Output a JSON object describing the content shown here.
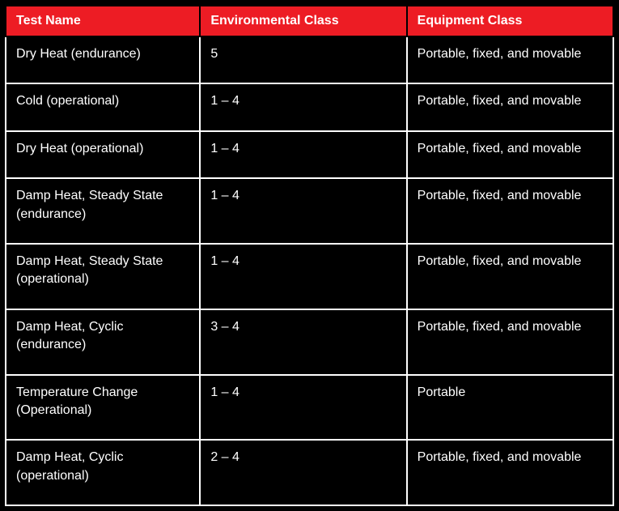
{
  "table": {
    "background_color": "#000000",
    "header_background": "#ed1c24",
    "header_text_color": "#ffffff",
    "cell_text_color": "#ffffff",
    "cell_border_color": "#ffffff",
    "header_border_color": "#000000",
    "font_size": 16,
    "columns": [
      "Test Name",
      "Environmental Class",
      "Equipment Class"
    ],
    "rows": [
      {
        "test_name": "Dry Heat (endurance)",
        "env_class": "5",
        "equip_class": "Portable, fixed, and movable"
      },
      {
        "test_name": "Cold (operational)",
        "env_class": "1 – 4",
        "equip_class": "Portable, fixed, and movable"
      },
      {
        "test_name": "Dry Heat (operational)",
        "env_class": "1 – 4",
        "equip_class": "Portable, fixed, and movable"
      },
      {
        "test_name": "Damp Heat, Steady State (endurance)",
        "env_class": "1 – 4",
        "equip_class": "Portable, fixed, and movable"
      },
      {
        "test_name": "Damp Heat, Steady State (operational)",
        "env_class": "1 – 4",
        "equip_class": "Portable, fixed, and movable"
      },
      {
        "test_name": "Damp Heat, Cyclic (endurance)",
        "env_class": "3 – 4",
        "equip_class": "Portable, fixed, and movable"
      },
      {
        "test_name": "Temperature Change (Operational)",
        "env_class": "1 – 4",
        "equip_class": "Portable"
      },
      {
        "test_name": "Damp Heat, Cyclic (operational)",
        "env_class": "2 – 4",
        "equip_class": "Portable, fixed, and movable"
      }
    ]
  }
}
